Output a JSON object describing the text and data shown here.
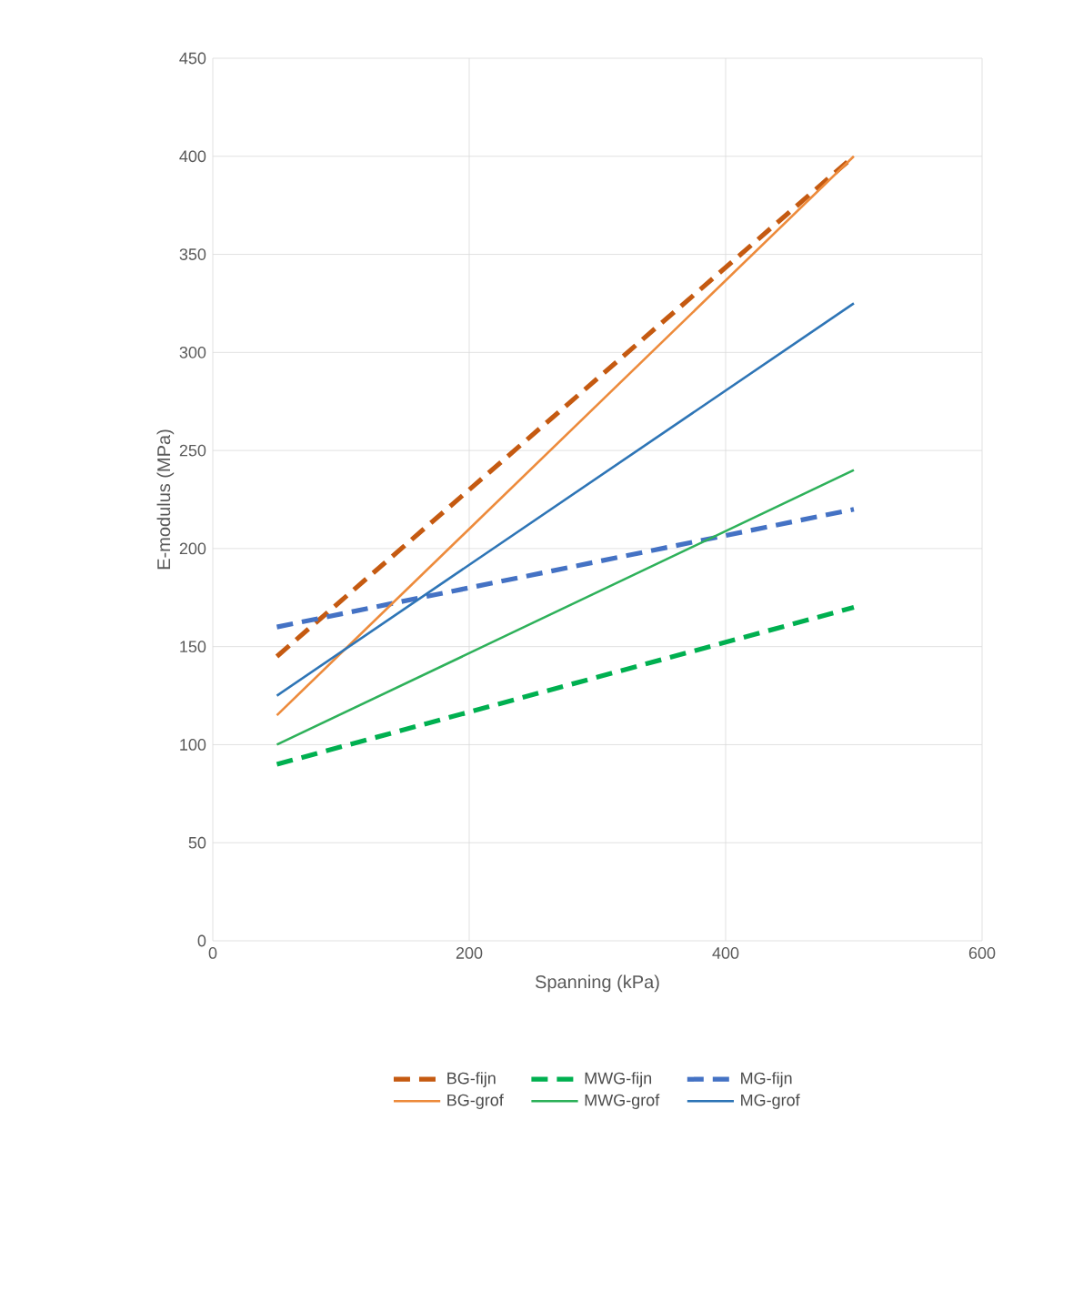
{
  "chart_data": {
    "type": "line",
    "xlabel": "Spanning (kPa)",
    "ylabel": "E-modulus (MPa)",
    "xlim": [
      0,
      600
    ],
    "xticks": [
      0,
      200,
      400,
      600
    ],
    "ylim": [
      0,
      450
    ],
    "yticks": [
      0,
      50,
      100,
      150,
      200,
      250,
      300,
      350,
      400,
      450
    ],
    "grid": true,
    "legend": "bottom",
    "marker": "none",
    "x": [
      50,
      500
    ],
    "series": [
      {
        "name": "BG-fijn",
        "color": "#c55a11",
        "values": [
          145,
          400
        ],
        "line_style": "dashed"
      },
      {
        "name": "MWG-fijn",
        "color": "#00b050",
        "values": [
          90,
          170
        ],
        "line_style": "dashed"
      },
      {
        "name": "MG-fijn",
        "color": "#4472c4",
        "values": [
          160,
          220
        ],
        "line_style": "dashed"
      },
      {
        "name": "BG-grof",
        "color": "#ed8b3c",
        "values": [
          115,
          400
        ],
        "line_style": "solid"
      },
      {
        "name": "MWG-grof",
        "color": "#2eb15a",
        "values": [
          100,
          240
        ],
        "line_style": "solid"
      },
      {
        "name": "MG-grof",
        "color": "#2e75b6",
        "values": [
          125,
          325
        ],
        "line_style": "solid"
      }
    ]
  }
}
